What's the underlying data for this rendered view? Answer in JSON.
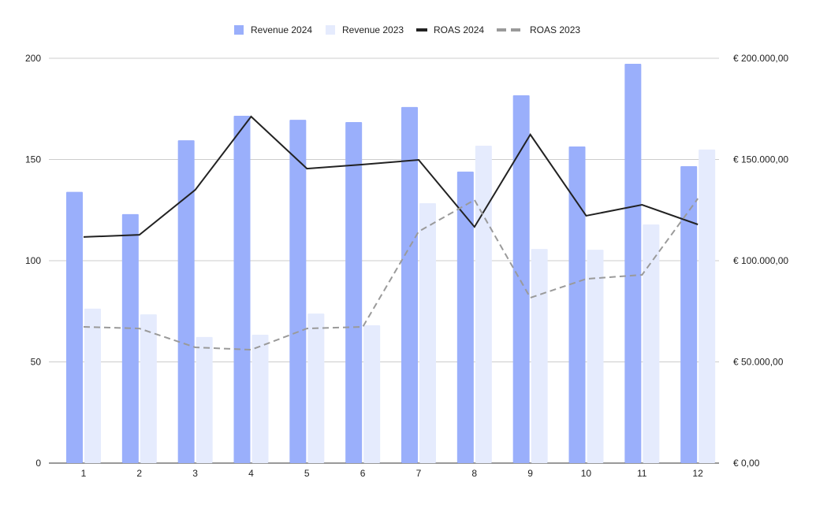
{
  "chart_data": {
    "type": "bar",
    "title": "",
    "categories": [
      "1",
      "2",
      "3",
      "4",
      "5",
      "6",
      "7",
      "8",
      "9",
      "10",
      "11",
      "12"
    ],
    "series": [
      {
        "name": "Revenue 2024",
        "kind": "bar",
        "axis": "right",
        "color": "#9aaffb",
        "values": [
          134000,
          123000,
          159500,
          171600,
          169600,
          168500,
          175900,
          144000,
          181700,
          156400,
          197300,
          146700
        ]
      },
      {
        "name": "Revenue 2023",
        "kind": "bar",
        "axis": "right",
        "color": "#e5ebfd",
        "values": [
          76300,
          73500,
          62300,
          63400,
          73900,
          68100,
          128400,
          156800,
          105800,
          105400,
          117900,
          154900
        ]
      },
      {
        "name": "ROAS 2024",
        "kind": "line",
        "axis": "left",
        "color": "#222222",
        "dash": false,
        "values": [
          111.7,
          112.8,
          135,
          171.2,
          145.5,
          147.5,
          149.8,
          116.7,
          162.3,
          122.2,
          127.6,
          117.9
        ]
      },
      {
        "name": "ROAS 2023",
        "kind": "line",
        "axis": "left",
        "color": "#9a9a9a",
        "dash": true,
        "values": [
          67.3,
          66.5,
          57.2,
          56,
          66.5,
          67.3,
          114.4,
          130,
          81.7,
          91,
          93,
          130.7
        ]
      }
    ],
    "y_left": {
      "range": [
        0,
        200
      ],
      "ticks": [
        "0",
        "50",
        "100",
        "150",
        "200"
      ]
    },
    "y_right": {
      "range": [
        0,
        200000
      ],
      "ticks": [
        "€ 0,00",
        "€ 50.000,00",
        "€ 100.000,00",
        "€ 150.000,00",
        "€ 200.000,00"
      ]
    },
    "xlabel": "",
    "ylabel": "",
    "grid": true,
    "legend": "top-center"
  }
}
